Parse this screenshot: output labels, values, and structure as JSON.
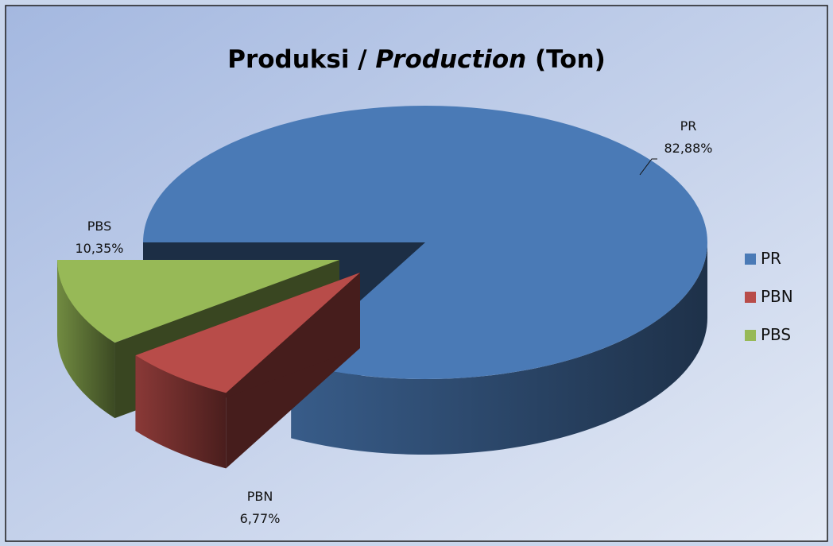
{
  "chart_data": {
    "type": "pie3d",
    "title": [
      "Produksi /",
      "Production",
      "(Ton)"
    ],
    "categories": [
      "PR",
      "PBN",
      "PBS"
    ],
    "values": [
      82.88,
      6.77,
      10.35
    ],
    "value_labels": [
      "82,88%",
      "6,77%",
      "10,35%"
    ],
    "colors": [
      "#4a7ab6",
      "#b84c49",
      "#97b957"
    ],
    "legend": "right"
  }
}
